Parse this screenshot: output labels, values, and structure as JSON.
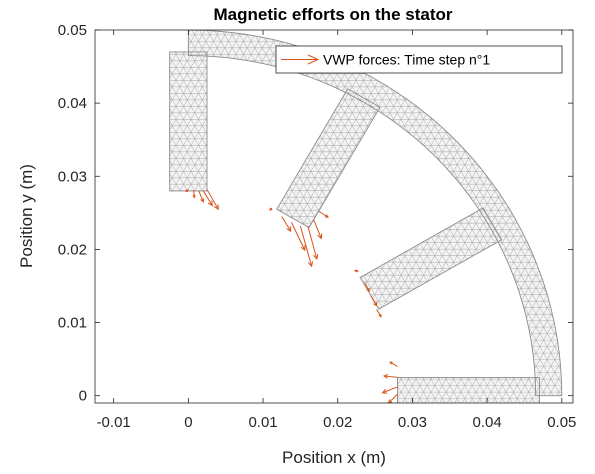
{
  "chart_data": {
    "type": "vector_field_on_mesh",
    "title": "Magnetic efforts on the stator",
    "xlabel": "Position x (m)",
    "ylabel": "Position y (m)",
    "xlim": [
      -0.0125,
      0.0515
    ],
    "ylim": [
      -0.001,
      0.05
    ],
    "xticks": [
      -0.01,
      0,
      0.01,
      0.02,
      0.03,
      0.04,
      0.05
    ],
    "xtick_labels": [
      "-0.01",
      "0",
      "0.01",
      "0.02",
      "0.03",
      "0.04",
      "0.05"
    ],
    "yticks": [
      0,
      0.01,
      0.02,
      0.03,
      0.04,
      0.05
    ],
    "ytick_labels": [
      "0",
      "0.01",
      "0.02",
      "0.03",
      "0.04",
      "0.05"
    ],
    "grid": false,
    "legend": {
      "position": "top-right",
      "entries": [
        "VWP forces: Time step n°1"
      ]
    },
    "colors": {
      "mesh": "#b3b3b3",
      "mesh_edge": "#8c8c8c",
      "forces": "#d95319",
      "background": "#ffffff"
    },
    "stator": {
      "yoke_inner_radius": 0.0465,
      "yoke_outer_radius": 0.05,
      "tooth_tip_radius": 0.028,
      "tooth_half_width": 0.0025,
      "tooth_angles_deg": [
        0,
        30,
        60,
        90
      ]
    },
    "force_series": [
      {
        "name": "VWP forces: Time step n°1",
        "tooth_angle_deg": 90,
        "vectors": [
          {
            "x": 0.0,
            "y": 0.0282,
            "u": -0.0003,
            "v": -0.0003
          },
          {
            "x": 0.0007,
            "y": 0.0281,
            "u": 0.0001,
            "v": -0.001
          },
          {
            "x": 0.0014,
            "y": 0.028,
            "u": 0.0006,
            "v": -0.0015
          },
          {
            "x": 0.002,
            "y": 0.028,
            "u": 0.0012,
            "v": -0.002
          },
          {
            "x": 0.0025,
            "y": 0.0282,
            "u": 0.0015,
            "v": -0.0027
          }
        ]
      },
      {
        "name": "",
        "tooth_angle_deg": 60,
        "vectors": [
          {
            "x": 0.0112,
            "y": 0.0256,
            "u": -0.0003,
            "v": -0.0002
          },
          {
            "x": 0.0125,
            "y": 0.0245,
            "u": 0.0012,
            "v": -0.002
          },
          {
            "x": 0.0138,
            "y": 0.0237,
            "u": 0.0018,
            "v": -0.0038
          },
          {
            "x": 0.015,
            "y": 0.0232,
            "u": 0.0015,
            "v": -0.0055
          },
          {
            "x": 0.016,
            "y": 0.0232,
            "u": 0.0012,
            "v": -0.0045
          },
          {
            "x": 0.0168,
            "y": 0.024,
            "u": 0.001,
            "v": -0.0025
          },
          {
            "x": 0.0175,
            "y": 0.0252,
            "u": 0.0012,
            "v": -0.0008
          }
        ]
      },
      {
        "name": "",
        "tooth_angle_deg": 30,
        "vectors": [
          {
            "x": 0.0228,
            "y": 0.017,
            "u": -0.0005,
            "v": 0.0001
          },
          {
            "x": 0.0236,
            "y": 0.0155,
            "u": 0.0006,
            "v": -0.0012
          },
          {
            "x": 0.0244,
            "y": 0.0137,
            "u": 0.0008,
            "v": -0.0014
          },
          {
            "x": 0.0252,
            "y": 0.0118,
            "u": 0.0006,
            "v": -0.001
          }
        ]
      },
      {
        "name": "",
        "tooth_angle_deg": 0,
        "vectors": [
          {
            "x": 0.028,
            "y": 0.004,
            "u": -0.001,
            "v": 0.0006
          },
          {
            "x": 0.028,
            "y": 0.0025,
            "u": -0.0018,
            "v": 0.0002
          },
          {
            "x": 0.028,
            "y": 0.0012,
            "u": -0.002,
            "v": -0.0008
          },
          {
            "x": 0.028,
            "y": 0.0002,
            "u": -0.0012,
            "v": -0.0012
          }
        ]
      }
    ]
  }
}
